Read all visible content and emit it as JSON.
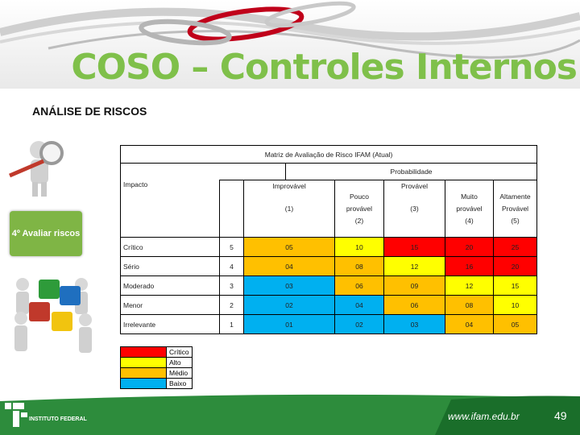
{
  "slide": {
    "title": "COSO – Controles Internos",
    "subtitle": "ANÁLISE DE RISCOS",
    "badge": "4º Avaliar riscos",
    "url": "www.ifam.edu.br",
    "page_number": "49",
    "logo_text": "INSTITUTO FEDERAL"
  },
  "matrix": {
    "title": "Matriz de Avaliação de Risco IFAM (Atual)",
    "probability_label": "Probabilidade",
    "impact_label": "Impacto",
    "columns": [
      {
        "label": "Improvável",
        "code": "(1)"
      },
      {
        "label": "Pouco provável",
        "code": "(2)"
      },
      {
        "label": "Provável",
        "code": "(3)"
      },
      {
        "label": "Muito provável",
        "code": "(4)"
      },
      {
        "label": "Altamente Provável",
        "code": "(5)"
      }
    ],
    "rows": [
      {
        "impact": "Crítico",
        "weight": "5",
        "values": [
          "05",
          "10",
          "15",
          "20",
          "25"
        ],
        "colors": [
          "ora",
          "yel",
          "red",
          "red",
          "red"
        ]
      },
      {
        "impact": "Sério",
        "weight": "4",
        "values": [
          "04",
          "08",
          "12",
          "16",
          "20"
        ],
        "colors": [
          "ora",
          "ora",
          "yel",
          "red",
          "red"
        ]
      },
      {
        "impact": "Moderado",
        "weight": "3",
        "values": [
          "03",
          "06",
          "09",
          "12",
          "15"
        ],
        "colors": [
          "blu",
          "ora",
          "ora",
          "yel",
          "yel"
        ]
      },
      {
        "impact": "Menor",
        "weight": "2",
        "values": [
          "02",
          "04",
          "06",
          "08",
          "10"
        ],
        "colors": [
          "blu",
          "blu",
          "ora",
          "ora",
          "yel"
        ]
      },
      {
        "impact": "Irrelevante",
        "weight": "1",
        "values": [
          "01",
          "02",
          "03",
          "04",
          "05"
        ],
        "colors": [
          "blu",
          "blu",
          "blu",
          "ora",
          "ora"
        ]
      }
    ]
  },
  "legend": [
    {
      "label": "Crítico",
      "color": "#ff0000"
    },
    {
      "label": "Alto",
      "color": "#ffff00"
    },
    {
      "label": "Médio",
      "color": "#ffc000"
    },
    {
      "label": "Baixo",
      "color": "#00b0f0"
    }
  ]
}
